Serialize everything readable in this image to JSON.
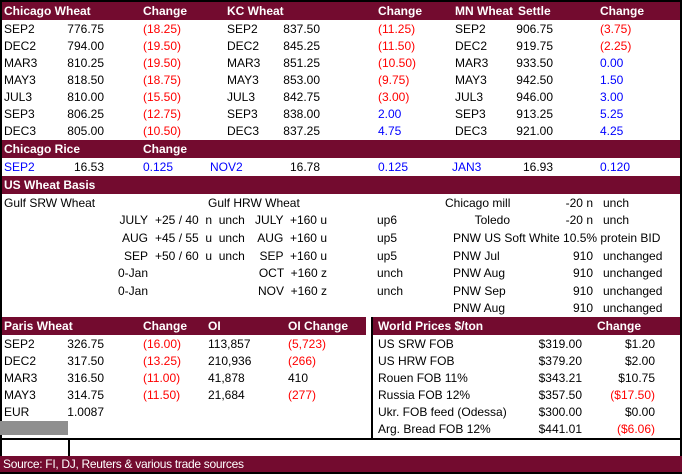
{
  "colors": {
    "header_bg": "#730B2F",
    "negative_text": "#FF0000",
    "positive_text": "#0000FF",
    "default_text": "#000000",
    "gray_box": "#8F8F8F"
  },
  "top": {
    "chicago": {
      "title": "Chicago Wheat",
      "change_header": "Change",
      "rows": [
        {
          "m": "SEP2",
          "v": "776.75",
          "c": "(18.25)",
          "s": "neg"
        },
        {
          "m": "DEC2",
          "v": "794.00",
          "c": "(19.50)",
          "s": "neg"
        },
        {
          "m": "MAR3",
          "v": "810.25",
          "c": "(19.50)",
          "s": "neg"
        },
        {
          "m": "MAY3",
          "v": "818.50",
          "c": "(18.75)",
          "s": "neg"
        },
        {
          "m": "JUL3",
          "v": "810.00",
          "c": "(15.50)",
          "s": "neg"
        },
        {
          "m": "SEP3",
          "v": "806.25",
          "c": "(12.75)",
          "s": "neg"
        },
        {
          "m": "DEC3",
          "v": "805.00",
          "c": "(10.50)",
          "s": "neg"
        }
      ]
    },
    "kc": {
      "title": "KC Wheat",
      "change_header": "Change",
      "rows": [
        {
          "m": "SEP2",
          "v": "837.50",
          "c": "(11.25)",
          "s": "neg"
        },
        {
          "m": "DEC2",
          "v": "845.25",
          "c": "(11.50)",
          "s": "neg"
        },
        {
          "m": "MAR3",
          "v": "851.25",
          "c": "(10.50)",
          "s": "neg"
        },
        {
          "m": "MAY3",
          "v": "853.00",
          "c": "(9.75)",
          "s": "neg"
        },
        {
          "m": "JUL3",
          "v": "842.75",
          "c": "(3.00)",
          "s": "neg"
        },
        {
          "m": "SEP3",
          "v": "838.00",
          "c": "2.00",
          "s": "pos"
        },
        {
          "m": "DEC3",
          "v": "837.25",
          "c": "4.75",
          "s": "pos"
        }
      ]
    },
    "mn": {
      "title": "MN Wheat",
      "settle_header": "Settle",
      "change_header": "Change",
      "rows": [
        {
          "m": "SEP2",
          "v": "906.75",
          "c": "(3.75)",
          "s": "neg"
        },
        {
          "m": "DEC2",
          "v": "919.75",
          "c": "(2.25)",
          "s": "neg"
        },
        {
          "m": "MAR3",
          "v": "933.50",
          "c": "0.00",
          "s": "pos"
        },
        {
          "m": "MAY3",
          "v": "942.50",
          "c": "1.50",
          "s": "pos"
        },
        {
          "m": "JUL3",
          "v": "946.00",
          "c": "3.00",
          "s": "pos"
        },
        {
          "m": "SEP3",
          "v": "913.25",
          "c": "5.25",
          "s": "pos"
        },
        {
          "m": "DEC3",
          "v": "921.00",
          "c": "4.25",
          "s": "pos"
        }
      ]
    }
  },
  "rice": {
    "title": "Chicago Rice",
    "change_header": "Change",
    "cells": [
      {
        "t": "SEP2",
        "s": "pos"
      },
      {
        "t": "16.53",
        "s": ""
      },
      {
        "t": "0.125",
        "s": "pos"
      },
      {
        "t": "NOV2",
        "s": "pos"
      },
      {
        "t": "16.78",
        "s": ""
      },
      {
        "t": "0.125",
        "s": "pos"
      },
      {
        "t": "JAN3",
        "s": "pos"
      },
      {
        "t": "16.93",
        "s": ""
      },
      {
        "t": "0.120",
        "s": "pos"
      }
    ]
  },
  "basis": {
    "title": "US Wheat Basis",
    "srw": {
      "header": "Gulf SRW Wheat",
      "rows": [
        {
          "l": "JULY",
          "v": "+25 / 40  n  unch"
        },
        {
          "l": "AUG",
          "v": "+45 / 55  u  unch"
        },
        {
          "l": "SEP",
          "v": "+50 / 60  u  unch"
        },
        {
          "l": "0-Jan",
          "v": ""
        },
        {
          "l": "0-Jan",
          "v": ""
        }
      ]
    },
    "hrw": {
      "header": "Gulf HRW Wheat",
      "rows": [
        {
          "l": "JULY  +160 u",
          "v": "up6"
        },
        {
          "l": "AUG  +160 u",
          "v": "up5"
        },
        {
          "l": "SEP  +160 u",
          "v": "up5"
        },
        {
          "l": "OCT  +160 z",
          "v": "unch"
        },
        {
          "l": "NOV  +160 z",
          "v": "unch"
        }
      ]
    },
    "mill": {
      "rows": [
        {
          "l": "Chicago mill",
          "n": "-20 n",
          "r": "unch"
        },
        {
          "l": "Toledo",
          "n": "-20 n",
          "r": "unch"
        },
        {
          "l": "PNW US Soft White 10.5% protein BID",
          "n": "",
          "r": ""
        },
        {
          "l": "PNW Jul",
          "n": "910",
          "r": "unchanged"
        },
        {
          "l": "PNW Aug",
          "n": "910",
          "r": "unchanged"
        },
        {
          "l": "PNW Sep",
          "n": "910",
          "r": "unchanged"
        },
        {
          "l": "PNW Aug",
          "n": "910",
          "r": "unchanged"
        }
      ]
    }
  },
  "paris": {
    "title": "Paris Wheat",
    "change_header": "Change",
    "oi_header": "OI",
    "oi_change_header": "OI Change",
    "rows": [
      {
        "m": "SEP2",
        "v": "326.75",
        "c": "(16.00)",
        "cs": "neg",
        "oi": "113,857",
        "oc": "(5,723)",
        "ocs": "neg"
      },
      {
        "m": "DEC2",
        "v": "317.50",
        "c": "(13.25)",
        "cs": "neg",
        "oi": "210,936",
        "oc": "(266)",
        "ocs": "neg"
      },
      {
        "m": "MAR3",
        "v": "316.50",
        "c": "(11.00)",
        "cs": "neg",
        "oi": "41,878",
        "oc": "410",
        "ocs": ""
      },
      {
        "m": "MAY3",
        "v": "314.75",
        "c": "(11.50)",
        "cs": "neg",
        "oi": "21,684",
        "oc": "(277)",
        "ocs": "neg"
      },
      {
        "m": "EUR",
        "v": "1.0087",
        "c": "",
        "cs": "",
        "oi": "",
        "oc": "",
        "ocs": ""
      }
    ]
  },
  "world": {
    "title": "World Prices $/ton",
    "change_header": "Change",
    "rows": [
      {
        "l": "US SRW FOB",
        "v": "$319.00",
        "c": "$1.20",
        "cs": ""
      },
      {
        "l": "US HRW FOB",
        "v": "$379.20",
        "c": "$2.00",
        "cs": ""
      },
      {
        "l": "Rouen FOB 11%",
        "v": "$343.21",
        "c": "$10.75",
        "cs": ""
      },
      {
        "l": "Russia FOB 12%",
        "v": "$357.50",
        "c": "($17.50)",
        "cs": "neg"
      },
      {
        "l": "Ukr. FOB feed (Odessa)",
        "v": "$300.00",
        "c": "$0.00",
        "cs": ""
      },
      {
        "l": "Arg. Bread FOB 12%",
        "v": "$441.01",
        "c": "($6.06)",
        "cs": "neg"
      }
    ]
  },
  "source_line": "Source: FI, DJ, Reuters & various trade sources"
}
